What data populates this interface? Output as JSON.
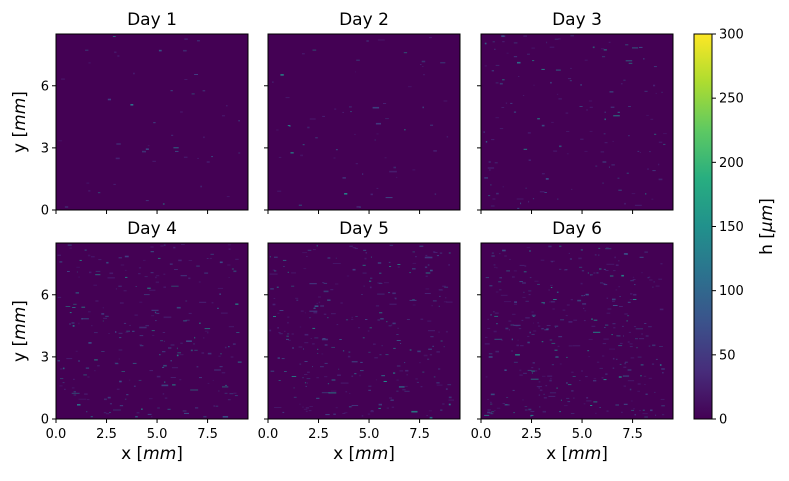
{
  "chart_data": {
    "type": "heatmap",
    "colormap": "viridis",
    "panels": [
      {
        "title": "Day 1",
        "density": 0.15
      },
      {
        "title": "Day 2",
        "density": 0.2
      },
      {
        "title": "Day 3",
        "density": 0.45
      },
      {
        "title": "Day 4",
        "density": 0.8
      },
      {
        "title": "Day 5",
        "density": 0.95
      },
      {
        "title": "Day 6",
        "density": 1.15
      }
    ],
    "xlabel": "x [mm]",
    "ylabel": "y [mm]",
    "xlim": [
      0,
      9.5
    ],
    "ylim": [
      0,
      8.5
    ],
    "xticks": [
      0.0,
      2.5,
      5.0,
      7.5
    ],
    "xticklabels": [
      "0.0",
      "2.5",
      "5.0",
      "7.5"
    ],
    "yticks": [
      0,
      3,
      6
    ],
    "yticklabels": [
      "0",
      "3",
      "6"
    ],
    "colorbar": {
      "label": "h [μm]",
      "range": [
        0,
        300
      ],
      "ticks": [
        0,
        50,
        100,
        150,
        200,
        250,
        300
      ],
      "ticklabels": [
        "0",
        "50",
        "100",
        "150",
        "200",
        "250",
        "300"
      ]
    },
    "background_color": "#440154"
  }
}
